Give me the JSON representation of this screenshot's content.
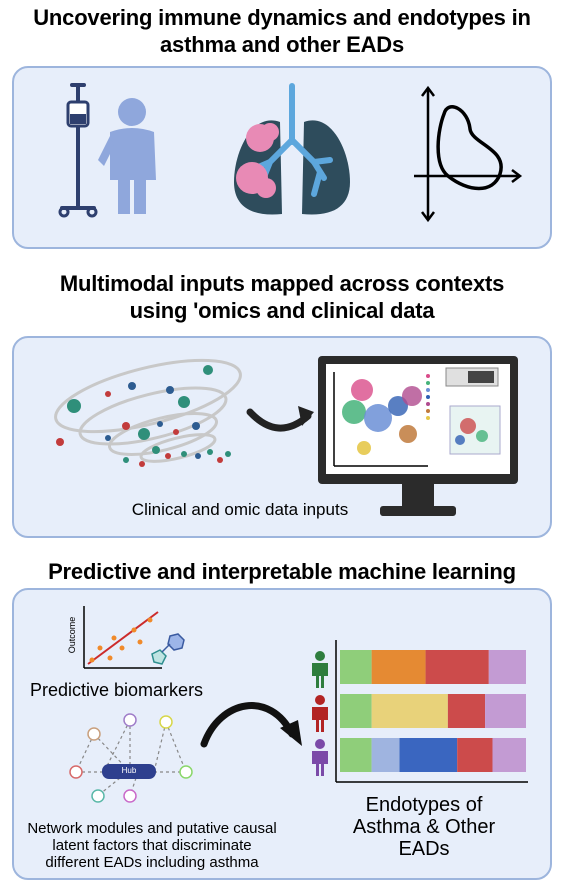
{
  "section1": {
    "title_line1": "Uncovering immune dynamics and endotypes in",
    "title_line2": "asthma and other EADs"
  },
  "section2": {
    "title_line1": "Multimodal inputs mapped across contexts",
    "title_line2": "using  'omics and clinical data",
    "caption": "Clinical and omic data inputs"
  },
  "section3": {
    "title": "Predictive and interpretable machine learning",
    "scatter_axis_label": "Outcome",
    "biomarkers_caption": "Predictive biomarkers",
    "hub_label": "Hub",
    "network_caption_line1": "Network modules and putative causal",
    "network_caption_line2": "latent factors that discriminate",
    "network_caption_line3": "different EADs including asthma",
    "endotypes_line1": "Endotypes of",
    "endotypes_line2": "Asthma & Other",
    "endotypes_line3": "EADs"
  },
  "colors": {
    "panel_fill": "#e7eefa",
    "panel_border": "#9db5dd",
    "person_blue": "#8fa7dc",
    "lung": "#2e4c5c",
    "airway": "#5da7dd",
    "tumor": "#e88ab5"
  },
  "endotype_bars": [
    {
      "person_color": "#2e7d3e",
      "segments": [
        {
          "fraction": 0.17,
          "color": "#8fce7a"
        },
        {
          "fraction": 0.29,
          "color": "#e58a33"
        },
        {
          "fraction": 0.34,
          "color": "#cc4b4b"
        },
        {
          "fraction": 0.2,
          "color": "#c39bd3"
        }
      ]
    },
    {
      "person_color": "#b22424",
      "segments": [
        {
          "fraction": 0.17,
          "color": "#8fce7a"
        },
        {
          "fraction": 0.41,
          "color": "#e8d27a"
        },
        {
          "fraction": 0.2,
          "color": "#cc4b4b"
        },
        {
          "fraction": 0.22,
          "color": "#c39bd3"
        }
      ]
    },
    {
      "person_color": "#7b4aa8",
      "segments": [
        {
          "fraction": 0.17,
          "color": "#8fce7a"
        },
        {
          "fraction": 0.15,
          "color": "#9fb4e0"
        },
        {
          "fraction": 0.31,
          "color": "#3a66c0"
        },
        {
          "fraction": 0.19,
          "color": "#cc4b4b"
        },
        {
          "fraction": 0.18,
          "color": "#c39bd3"
        }
      ]
    }
  ]
}
